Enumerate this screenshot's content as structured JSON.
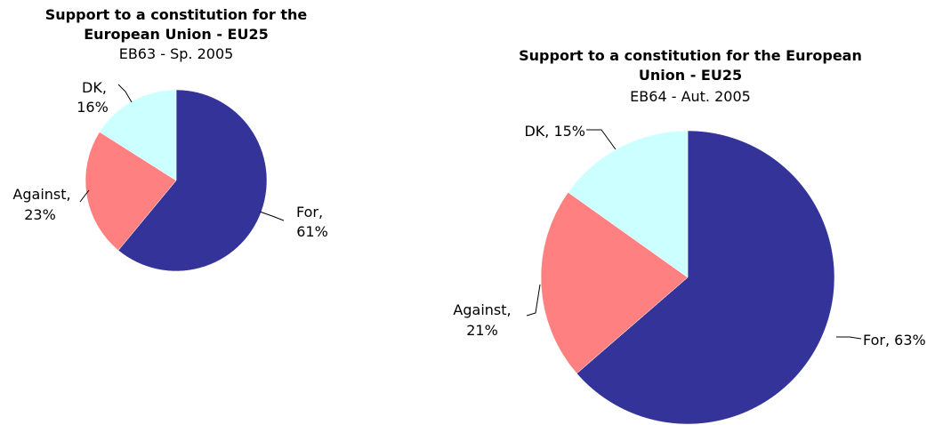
{
  "chart_data": [
    {
      "type": "pie",
      "title_lines": [
        "Support to a constitution for the",
        "European Union - EU25"
      ],
      "subtitle": "EB63 - Sp. 2005",
      "start_angle_deg": 0,
      "direction": "clockwise",
      "slices": [
        {
          "name": "For",
          "value": 61,
          "color": "#333399",
          "label_lines": [
            "For,",
            "61%"
          ]
        },
        {
          "name": "Against",
          "value": 23,
          "color": "#FF8080",
          "label_lines": [
            "Against,",
            "23%"
          ]
        },
        {
          "name": "DK",
          "value": 16,
          "color": "#CCFFFF",
          "label_lines": [
            "DK,",
            "16%"
          ]
        }
      ]
    },
    {
      "type": "pie",
      "title_lines": [
        "Support to a constitution for the European",
        "Union - EU25"
      ],
      "subtitle": "EB64 - Aut. 2005",
      "start_angle_deg": 0,
      "direction": "clockwise",
      "slices": [
        {
          "name": "For",
          "value": 63,
          "color": "#333399",
          "label_lines": [
            "For, 63%"
          ]
        },
        {
          "name": "Against",
          "value": 21,
          "color": "#FF8080",
          "label_lines": [
            "Against,",
            "21%"
          ]
        },
        {
          "name": "DK",
          "value": 15,
          "color": "#CCFFFF",
          "label_lines": [
            "DK, 15%"
          ]
        }
      ]
    }
  ]
}
